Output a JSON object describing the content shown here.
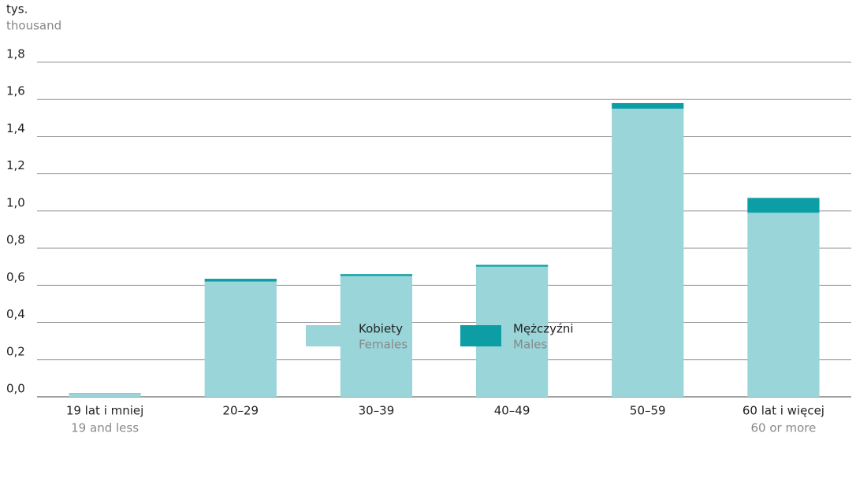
{
  "chart_data": {
    "type": "bar",
    "stacked": true,
    "y_label": "tys.",
    "y_label_en": "thousand",
    "categories": [
      "19 lat i mniej",
      "20–29",
      "30–39",
      "40–49",
      "50–59",
      "60 lat i więcej"
    ],
    "categories_en": [
      "19 and less",
      null,
      null,
      null,
      null,
      "60 or more"
    ],
    "series": [
      {
        "name": "Kobiety",
        "name_en": "Females",
        "color": "#9ad5d9",
        "values": [
          0.018,
          0.62,
          0.65,
          0.7,
          1.55,
          0.99
        ]
      },
      {
        "name": "Mężczyźni",
        "name_en": "Males",
        "color": "#0d9ea5",
        "values": [
          0.002,
          0.015,
          0.01,
          0.01,
          0.03,
          0.08
        ]
      }
    ],
    "ylim": [
      0,
      1.8
    ],
    "yticks": [
      {
        "value": 0,
        "label": "0,0"
      },
      {
        "value": 0.2,
        "label": "0,2"
      },
      {
        "value": 0.4,
        "label": "0,4"
      },
      {
        "value": 0.6,
        "label": "0,6"
      },
      {
        "value": 0.8,
        "label": "0,8"
      },
      {
        "value": 1,
        "label": "1,0"
      },
      {
        "value": 1.2,
        "label": "1,2"
      },
      {
        "value": 1.4,
        "label": "1,4"
      },
      {
        "value": 1.6,
        "label": "1,6"
      },
      {
        "value": 1.8,
        "label": "1,8"
      }
    ],
    "grid": true
  }
}
